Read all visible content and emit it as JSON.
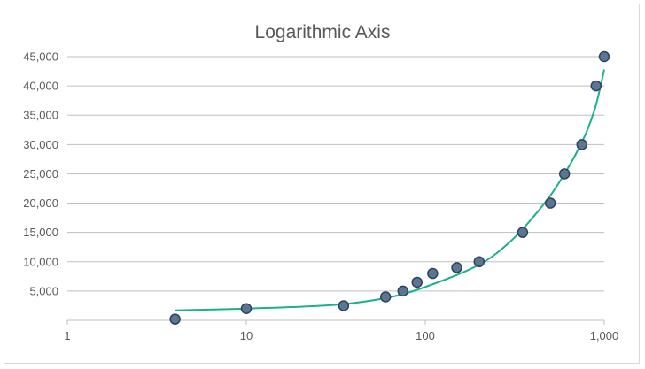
{
  "chart_data": {
    "type": "scatter",
    "title": "Logarithmic Axis",
    "x_scale": "log10",
    "xlim": [
      1,
      1000
    ],
    "ylim": [
      0,
      45000
    ],
    "x_tick_labels": [
      "1",
      "10",
      "100",
      "1,000"
    ],
    "y_tick_labels": [
      "5,000",
      "10,000",
      "15,000",
      "20,000",
      "25,000",
      "30,000",
      "35,000",
      "40,000",
      "45,000"
    ],
    "grid": {
      "horizontal": true,
      "vertical": false
    },
    "legend": "none",
    "colors": {
      "marker_fill": "#5b7595",
      "marker_stroke": "#2f4259",
      "trendline": "#1db08a",
      "gridline": "#bfbfbf"
    },
    "points": [
      {
        "x": 4,
        "y": 200
      },
      {
        "x": 10,
        "y": 2000
      },
      {
        "x": 35,
        "y": 2500
      },
      {
        "x": 60,
        "y": 4000
      },
      {
        "x": 75,
        "y": 5000
      },
      {
        "x": 90,
        "y": 6500
      },
      {
        "x": 110,
        "y": 8000
      },
      {
        "x": 150,
        "y": 9000
      },
      {
        "x": 200,
        "y": 10000
      },
      {
        "x": 350,
        "y": 15000
      },
      {
        "x": 500,
        "y": 20000
      },
      {
        "x": 600,
        "y": 25000
      },
      {
        "x": 750,
        "y": 30000
      },
      {
        "x": 900,
        "y": 40000
      },
      {
        "x": 1000,
        "y": 45000
      }
    ],
    "trendline": {
      "type": "polynomial",
      "x_range": [
        4,
        1000
      ],
      "points": [
        {
          "x": 4,
          "y": 1700
        },
        {
          "x": 10,
          "y": 2000
        },
        {
          "x": 30,
          "y": 2600
        },
        {
          "x": 60,
          "y": 3800
        },
        {
          "x": 100,
          "y": 5700
        },
        {
          "x": 200,
          "y": 9500
        },
        {
          "x": 300,
          "y": 13500
        },
        {
          "x": 400,
          "y": 17600
        },
        {
          "x": 500,
          "y": 21300
        },
        {
          "x": 600,
          "y": 25000
        },
        {
          "x": 700,
          "y": 28600
        },
        {
          "x": 800,
          "y": 32300
        },
        {
          "x": 900,
          "y": 36800
        },
        {
          "x": 1000,
          "y": 42800
        }
      ]
    }
  }
}
